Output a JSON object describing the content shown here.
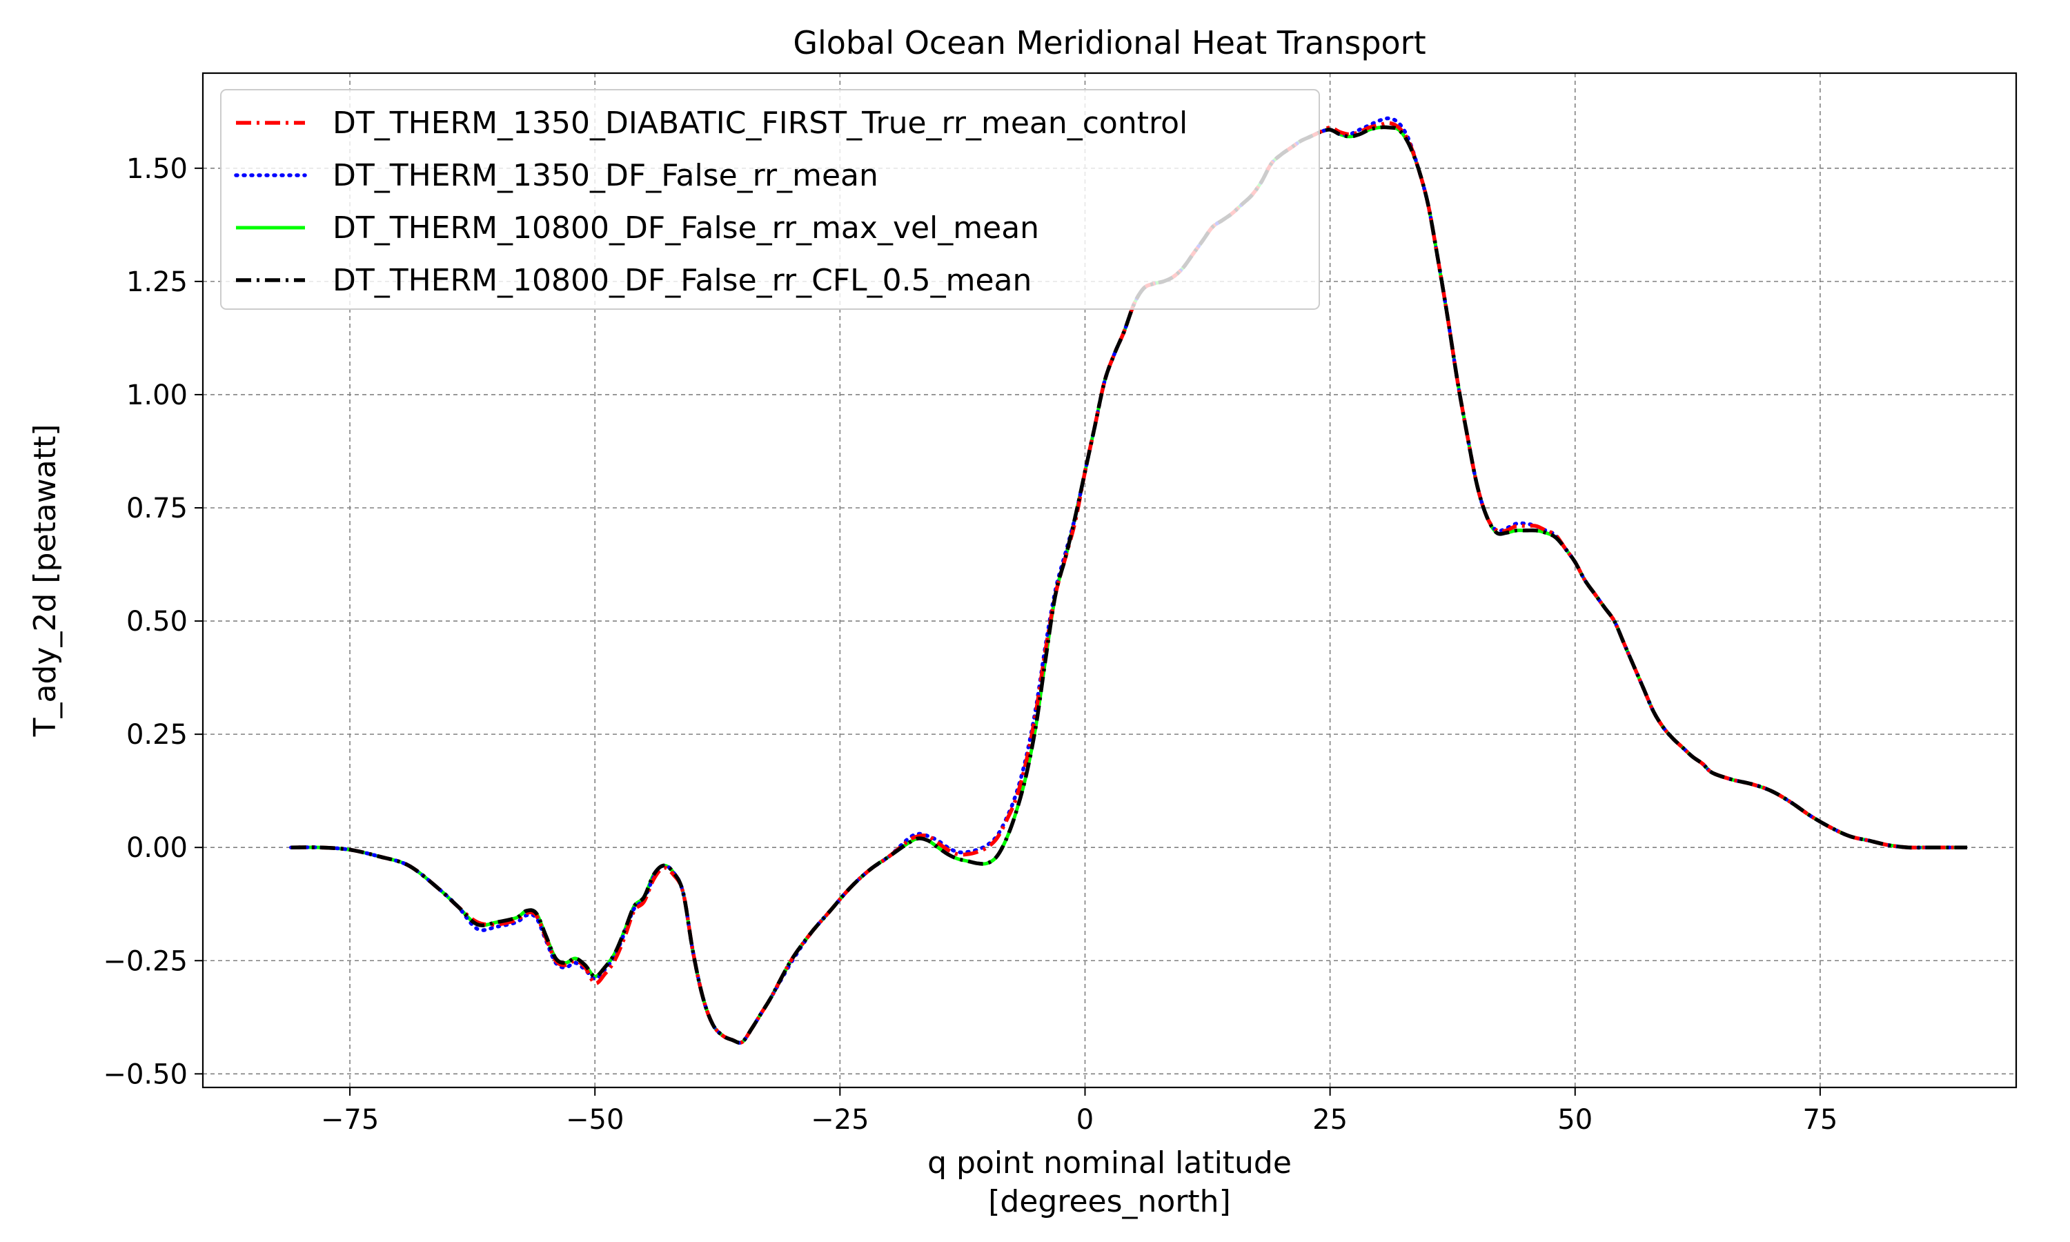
{
  "chart_data": {
    "type": "line",
    "title": "Global Ocean Meridional Heat Transport",
    "xlabel_line1": "q point nominal latitude",
    "xlabel_line2": "[degrees_north]",
    "ylabel": "T_ady_2d [petawatt]",
    "xlim": [
      -90,
      95
    ],
    "ylim": [
      -0.53,
      1.71
    ],
    "grid": true,
    "legend_placement": "top-left",
    "x_ticks": [
      -75,
      -50,
      -25,
      0,
      25,
      50,
      75
    ],
    "x_tick_labels": [
      "−75",
      "−50",
      "−25",
      "0",
      "25",
      "50",
      "75"
    ],
    "y_ticks": [
      -0.5,
      -0.25,
      0,
      0.25,
      0.5,
      0.75,
      1.0,
      1.25,
      1.5
    ],
    "y_tick_labels": [
      "−0.50",
      "−0.25",
      "0.00",
      "0.25",
      "0.50",
      "0.75",
      "1.00",
      "1.25",
      "1.50"
    ],
    "x": [
      -81,
      -78,
      -75,
      -72,
      -69,
      -66,
      -64,
      -62,
      -60,
      -58,
      -57,
      -56,
      -55,
      -54,
      -53,
      -52,
      -51,
      -50,
      -49,
      -48,
      -47,
      -46,
      -45,
      -44,
      -43,
      -42,
      -41,
      -40,
      -39,
      -38,
      -37,
      -36,
      -35,
      -34,
      -33,
      -32,
      -30,
      -28,
      -26,
      -24,
      -22,
      -20,
      -18,
      -17,
      -16,
      -15,
      -14,
      -13,
      -12,
      -11,
      -10,
      -9,
      -8,
      -7,
      -6,
      -5,
      -4,
      -3,
      -2,
      -1,
      0,
      1,
      2,
      3,
      4,
      5,
      6,
      7,
      8,
      9,
      10,
      11,
      12,
      13,
      14,
      15,
      16,
      17,
      18,
      19,
      20,
      21,
      22,
      23,
      24,
      25,
      26,
      27,
      28,
      29,
      30,
      31,
      32,
      33,
      34,
      35,
      36,
      37,
      38,
      39,
      40,
      41,
      42,
      43,
      44,
      45,
      46,
      47,
      48,
      49,
      50,
      51,
      52,
      53,
      54,
      55,
      56,
      57,
      58,
      59,
      60,
      61,
      62,
      63,
      64,
      66,
      68,
      70,
      72,
      74,
      76,
      78,
      80,
      82,
      84,
      86,
      88,
      90
    ],
    "series": [
      {
        "name": "DT_THERM_1350_DIABATIC_FIRST_True_rr_mean_control",
        "color": "#ff0000",
        "dash": "dashdot",
        "values": [
          0.0,
          0.0,
          -0.005,
          -0.02,
          -0.04,
          -0.09,
          -0.13,
          -0.165,
          -0.17,
          -0.16,
          -0.145,
          -0.15,
          -0.2,
          -0.25,
          -0.26,
          -0.25,
          -0.265,
          -0.3,
          -0.28,
          -0.25,
          -0.2,
          -0.14,
          -0.12,
          -0.07,
          -0.045,
          -0.06,
          -0.1,
          -0.23,
          -0.33,
          -0.39,
          -0.415,
          -0.425,
          -0.43,
          -0.4,
          -0.365,
          -0.33,
          -0.25,
          -0.19,
          -0.14,
          -0.09,
          -0.05,
          -0.02,
          0.015,
          0.025,
          0.025,
          0.01,
          -0.005,
          -0.015,
          -0.015,
          -0.01,
          0.0,
          0.02,
          0.06,
          0.11,
          0.19,
          0.3,
          0.44,
          0.56,
          0.64,
          0.72,
          0.83,
          0.93,
          1.03,
          1.09,
          1.14,
          1.2,
          1.235,
          1.245,
          1.25,
          1.26,
          1.28,
          1.31,
          1.34,
          1.37,
          1.385,
          1.4,
          1.42,
          1.44,
          1.47,
          1.51,
          1.53,
          1.545,
          1.56,
          1.57,
          1.58,
          1.59,
          1.58,
          1.575,
          1.58,
          1.59,
          1.595,
          1.6,
          1.59,
          1.56,
          1.5,
          1.42,
          1.3,
          1.17,
          1.03,
          0.91,
          0.8,
          0.73,
          0.7,
          0.7,
          0.71,
          0.71,
          0.71,
          0.7,
          0.69,
          0.66,
          0.63,
          0.59,
          0.56,
          0.53,
          0.5,
          0.45,
          0.4,
          0.35,
          0.3,
          0.265,
          0.24,
          0.22,
          0.2,
          0.185,
          0.165,
          0.15,
          0.14,
          0.125,
          0.1,
          0.07,
          0.045,
          0.025,
          0.015,
          0.005,
          0.0,
          0.0,
          0.0,
          0.0
        ]
      },
      {
        "name": "DT_THERM_1350_DF_False_rr_mean",
        "color": "#0000ff",
        "dash": "dotted",
        "values": [
          0.0,
          0.0,
          -0.005,
          -0.02,
          -0.04,
          -0.09,
          -0.13,
          -0.18,
          -0.175,
          -0.165,
          -0.15,
          -0.155,
          -0.205,
          -0.255,
          -0.265,
          -0.255,
          -0.27,
          -0.29,
          -0.27,
          -0.24,
          -0.19,
          -0.135,
          -0.115,
          -0.065,
          -0.04,
          -0.055,
          -0.1,
          -0.23,
          -0.33,
          -0.39,
          -0.415,
          -0.425,
          -0.43,
          -0.4,
          -0.365,
          -0.33,
          -0.255,
          -0.19,
          -0.14,
          -0.09,
          -0.05,
          -0.02,
          0.02,
          0.03,
          0.025,
          0.015,
          0.0,
          -0.01,
          -0.01,
          -0.005,
          0.005,
          0.025,
          0.065,
          0.12,
          0.2,
          0.31,
          0.45,
          0.57,
          0.65,
          0.73,
          0.83,
          0.93,
          1.03,
          1.09,
          1.14,
          1.2,
          1.235,
          1.245,
          1.25,
          1.26,
          1.28,
          1.31,
          1.34,
          1.37,
          1.385,
          1.4,
          1.42,
          1.44,
          1.47,
          1.51,
          1.53,
          1.545,
          1.56,
          1.57,
          1.58,
          1.585,
          1.575,
          1.575,
          1.585,
          1.595,
          1.605,
          1.61,
          1.6,
          1.565,
          1.5,
          1.42,
          1.3,
          1.17,
          1.03,
          0.91,
          0.8,
          0.73,
          0.7,
          0.705,
          0.715,
          0.715,
          0.71,
          0.7,
          0.69,
          0.66,
          0.63,
          0.59,
          0.56,
          0.53,
          0.5,
          0.45,
          0.4,
          0.35,
          0.3,
          0.265,
          0.24,
          0.22,
          0.2,
          0.185,
          0.165,
          0.15,
          0.14,
          0.125,
          0.1,
          0.07,
          0.045,
          0.025,
          0.015,
          0.005,
          0.0,
          0.0,
          0.0,
          0.0
        ]
      },
      {
        "name": "DT_THERM_10800_DF_False_rr_max_vel_mean",
        "color": "#00ff00",
        "dash": "solid",
        "values": [
          0.0,
          0.0,
          -0.005,
          -0.02,
          -0.04,
          -0.09,
          -0.13,
          -0.17,
          -0.165,
          -0.155,
          -0.14,
          -0.145,
          -0.195,
          -0.245,
          -0.255,
          -0.245,
          -0.26,
          -0.285,
          -0.265,
          -0.235,
          -0.185,
          -0.13,
          -0.11,
          -0.06,
          -0.04,
          -0.055,
          -0.1,
          -0.23,
          -0.33,
          -0.39,
          -0.415,
          -0.425,
          -0.43,
          -0.4,
          -0.365,
          -0.33,
          -0.25,
          -0.19,
          -0.14,
          -0.09,
          -0.05,
          -0.02,
          0.01,
          0.02,
          0.015,
          0.0,
          -0.015,
          -0.025,
          -0.03,
          -0.035,
          -0.035,
          -0.02,
          0.02,
          0.08,
          0.16,
          0.27,
          0.42,
          0.56,
          0.64,
          0.73,
          0.83,
          0.93,
          1.03,
          1.09,
          1.14,
          1.2,
          1.235,
          1.245,
          1.25,
          1.26,
          1.28,
          1.31,
          1.34,
          1.37,
          1.385,
          1.4,
          1.42,
          1.44,
          1.47,
          1.51,
          1.53,
          1.545,
          1.56,
          1.57,
          1.58,
          1.585,
          1.575,
          1.57,
          1.575,
          1.585,
          1.59,
          1.59,
          1.585,
          1.555,
          1.5,
          1.42,
          1.3,
          1.17,
          1.03,
          0.91,
          0.8,
          0.73,
          0.695,
          0.695,
          0.7,
          0.7,
          0.7,
          0.695,
          0.685,
          0.66,
          0.63,
          0.59,
          0.56,
          0.53,
          0.5,
          0.45,
          0.4,
          0.35,
          0.3,
          0.265,
          0.24,
          0.22,
          0.2,
          0.185,
          0.165,
          0.15,
          0.14,
          0.125,
          0.1,
          0.07,
          0.045,
          0.025,
          0.015,
          0.005,
          0.0,
          0.0,
          0.0,
          0.0
        ]
      },
      {
        "name": "DT_THERM_10800_DF_False_rr_CFL_0.5_mean",
        "color": "#000000",
        "dash": "dashdot",
        "values": [
          0.0,
          0.0,
          -0.005,
          -0.02,
          -0.04,
          -0.09,
          -0.13,
          -0.17,
          -0.165,
          -0.155,
          -0.14,
          -0.145,
          -0.195,
          -0.245,
          -0.255,
          -0.245,
          -0.26,
          -0.285,
          -0.265,
          -0.235,
          -0.185,
          -0.13,
          -0.11,
          -0.06,
          -0.04,
          -0.055,
          -0.1,
          -0.23,
          -0.33,
          -0.39,
          -0.415,
          -0.425,
          -0.43,
          -0.4,
          -0.365,
          -0.33,
          -0.25,
          -0.19,
          -0.14,
          -0.09,
          -0.05,
          -0.02,
          0.01,
          0.02,
          0.015,
          0.0,
          -0.015,
          -0.025,
          -0.03,
          -0.035,
          -0.035,
          -0.02,
          0.02,
          0.08,
          0.16,
          0.27,
          0.42,
          0.56,
          0.64,
          0.73,
          0.83,
          0.93,
          1.03,
          1.09,
          1.14,
          1.2,
          1.235,
          1.245,
          1.25,
          1.26,
          1.28,
          1.31,
          1.34,
          1.37,
          1.385,
          1.4,
          1.42,
          1.44,
          1.47,
          1.51,
          1.53,
          1.545,
          1.56,
          1.57,
          1.58,
          1.585,
          1.575,
          1.57,
          1.575,
          1.585,
          1.59,
          1.59,
          1.585,
          1.555,
          1.5,
          1.42,
          1.3,
          1.17,
          1.03,
          0.91,
          0.8,
          0.73,
          0.695,
          0.695,
          0.7,
          0.7,
          0.7,
          0.695,
          0.685,
          0.66,
          0.63,
          0.59,
          0.56,
          0.53,
          0.5,
          0.45,
          0.4,
          0.35,
          0.3,
          0.265,
          0.24,
          0.22,
          0.2,
          0.185,
          0.165,
          0.15,
          0.14,
          0.125,
          0.1,
          0.07,
          0.045,
          0.025,
          0.015,
          0.005,
          0.0,
          0.0,
          0.0,
          0.0
        ]
      }
    ]
  }
}
